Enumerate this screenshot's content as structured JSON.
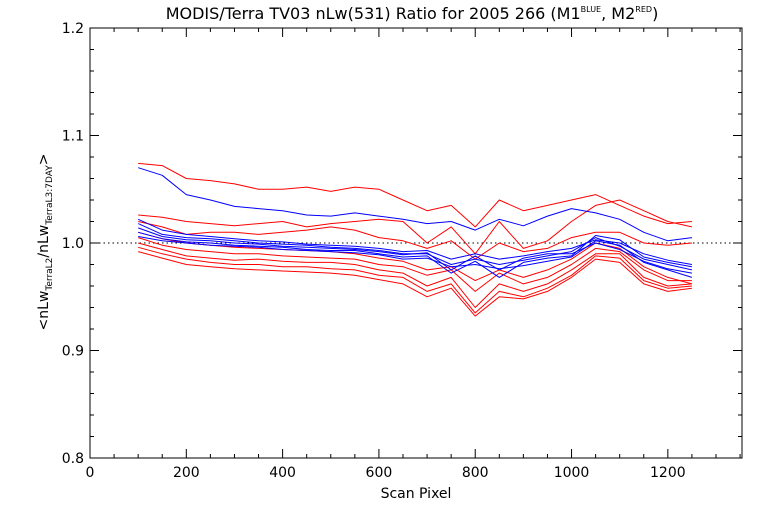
{
  "chart_data": {
    "type": "line",
    "title": "MODIS/Terra TV03 nLw(531) Ratio for 2005 266 (M1",
    "title_sup1": "BLUE",
    "title_mid": ", M2",
    "title_sup2": "RED",
    "title_end": ")",
    "xlabel": "Scan Pixel",
    "ylabel_parts": [
      "<nLw",
      "TerraL2",
      "/nLw",
      "TerraL3:7DAY",
      ">"
    ],
    "xlim": [
      0,
      1354
    ],
    "ylim": [
      0.8,
      1.2
    ],
    "xticks": [
      0,
      200,
      400,
      600,
      800,
      1000,
      1200
    ],
    "yticks": [
      0.8,
      0.9,
      1.0,
      1.1,
      1.2
    ],
    "ytick_labels": [
      "0.8",
      "0.9",
      "1.0",
      "1.1",
      "1.2"
    ],
    "reference_line": 1.0,
    "grid": false,
    "colors": {
      "M1": "#0000ff",
      "M2": "#ff0000",
      "M2_alt": "#e00000"
    },
    "x": [
      100,
      150,
      200,
      250,
      300,
      350,
      400,
      450,
      500,
      550,
      600,
      650,
      700,
      750,
      800,
      850,
      900,
      950,
      1000,
      1050,
      1100,
      1150,
      1200,
      1250
    ],
    "series": [
      {
        "group": "M1",
        "values": [
          1.07,
          1.063,
          1.045,
          1.04,
          1.034,
          1.032,
          1.03,
          1.026,
          1.025,
          1.028,
          1.025,
          1.022,
          1.018,
          1.02,
          1.012,
          1.022,
          1.016,
          1.025,
          1.032,
          1.028,
          1.022,
          1.01,
          1.002,
          1.005
        ]
      },
      {
        "group": "M1",
        "values": [
          1.022,
          1.012,
          1.008,
          1.006,
          1.004,
          1.002,
          1.001,
          0.999,
          0.998,
          0.997,
          0.995,
          0.992,
          0.993,
          0.985,
          0.99,
          0.985,
          0.988,
          0.992,
          0.995,
          1.003,
          1.0,
          0.99,
          0.984,
          0.98
        ]
      },
      {
        "group": "M1",
        "values": [
          1.018,
          1.008,
          1.005,
          1.004,
          1.002,
          1.0,
          0.999,
          0.998,
          0.996,
          0.995,
          0.993,
          0.99,
          0.99,
          0.98,
          0.985,
          0.98,
          0.984,
          0.988,
          0.992,
          1.005,
          0.997,
          0.985,
          0.98,
          0.975
        ]
      },
      {
        "group": "M1",
        "values": [
          1.014,
          1.006,
          1.003,
          1.002,
          1.0,
          0.999,
          0.997,
          0.996,
          0.995,
          0.994,
          0.992,
          0.989,
          0.991,
          0.975,
          0.988,
          0.975,
          0.986,
          0.99,
          0.99,
          1.0,
          0.994,
          0.983,
          0.976,
          0.972
        ]
      },
      {
        "group": "M1",
        "values": [
          1.01,
          1.004,
          1.001,
          1.0,
          0.998,
          0.997,
          0.996,
          0.994,
          0.993,
          0.993,
          0.99,
          0.987,
          0.988,
          0.972,
          0.983,
          0.968,
          0.982,
          0.986,
          0.988,
          1.007,
          1.003,
          0.987,
          0.982,
          0.978
        ]
      },
      {
        "group": "M1",
        "values": [
          1.006,
          1.002,
          1.0,
          0.998,
          0.997,
          0.996,
          0.994,
          0.993,
          0.992,
          0.991,
          0.989,
          0.985,
          0.986,
          0.978,
          0.98,
          0.976,
          0.979,
          0.983,
          0.987,
          1.002,
          0.998,
          0.982,
          0.975,
          0.968
        ]
      },
      {
        "group": "M2",
        "values": [
          1.074,
          1.072,
          1.06,
          1.058,
          1.055,
          1.05,
          1.05,
          1.052,
          1.048,
          1.052,
          1.05,
          1.04,
          1.03,
          1.035,
          1.015,
          1.04,
          1.03,
          1.035,
          1.04,
          1.045,
          1.035,
          1.025,
          1.018,
          1.02
        ]
      },
      {
        "group": "M2",
        "values": [
          1.026,
          1.024,
          1.02,
          1.018,
          1.016,
          1.018,
          1.02,
          1.015,
          1.018,
          1.02,
          1.022,
          1.02,
          1.0,
          1.015,
          0.99,
          1.02,
          0.995,
          1.002,
          1.02,
          1.035,
          1.04,
          1.03,
          1.02,
          1.015
        ]
      },
      {
        "group": "M2",
        "values": [
          1.02,
          1.015,
          1.008,
          1.01,
          1.01,
          1.008,
          1.01,
          1.012,
          1.015,
          1.012,
          1.005,
          1.002,
          0.995,
          1.002,
          0.985,
          1.0,
          0.992,
          0.995,
          1.005,
          1.01,
          1.01,
          1.0,
          0.998,
          1.0
        ]
      },
      {
        "group": "M2",
        "values": [
          1.0,
          0.994,
          0.988,
          0.986,
          0.984,
          0.985,
          0.983,
          0.982,
          0.982,
          0.98,
          0.975,
          0.972,
          0.96,
          0.968,
          0.94,
          0.962,
          0.955,
          0.962,
          0.975,
          0.99,
          0.99,
          0.968,
          0.96,
          0.962
        ]
      },
      {
        "group": "M2",
        "values": [
          0.996,
          0.99,
          0.985,
          0.982,
          0.98,
          0.98,
          0.978,
          0.978,
          0.976,
          0.975,
          0.97,
          0.968,
          0.955,
          0.962,
          0.935,
          0.955,
          0.95,
          0.958,
          0.97,
          0.988,
          0.986,
          0.965,
          0.958,
          0.96
        ]
      },
      {
        "group": "M2",
        "values": [
          0.992,
          0.986,
          0.98,
          0.978,
          0.976,
          0.975,
          0.974,
          0.973,
          0.972,
          0.97,
          0.966,
          0.962,
          0.95,
          0.958,
          0.932,
          0.95,
          0.948,
          0.955,
          0.968,
          0.985,
          0.982,
          0.962,
          0.955,
          0.958
        ]
      },
      {
        "group": "M2",
        "values": [
          1.005,
          0.998,
          0.994,
          0.992,
          0.99,
          0.99,
          0.988,
          0.987,
          0.986,
          0.985,
          0.98,
          0.978,
          0.97,
          0.975,
          0.955,
          0.972,
          0.962,
          0.968,
          0.98,
          0.995,
          0.992,
          0.975,
          0.965,
          0.965
        ]
      },
      {
        "group": "M2",
        "values": [
          1.01,
          1.004,
          1.0,
          0.998,
          0.996,
          0.995,
          0.994,
          0.993,
          0.992,
          0.99,
          0.986,
          0.983,
          0.975,
          0.978,
          0.965,
          0.975,
          0.968,
          0.975,
          0.985,
          1.0,
          0.995,
          0.978,
          0.968,
          0.962
        ]
      }
    ]
  }
}
